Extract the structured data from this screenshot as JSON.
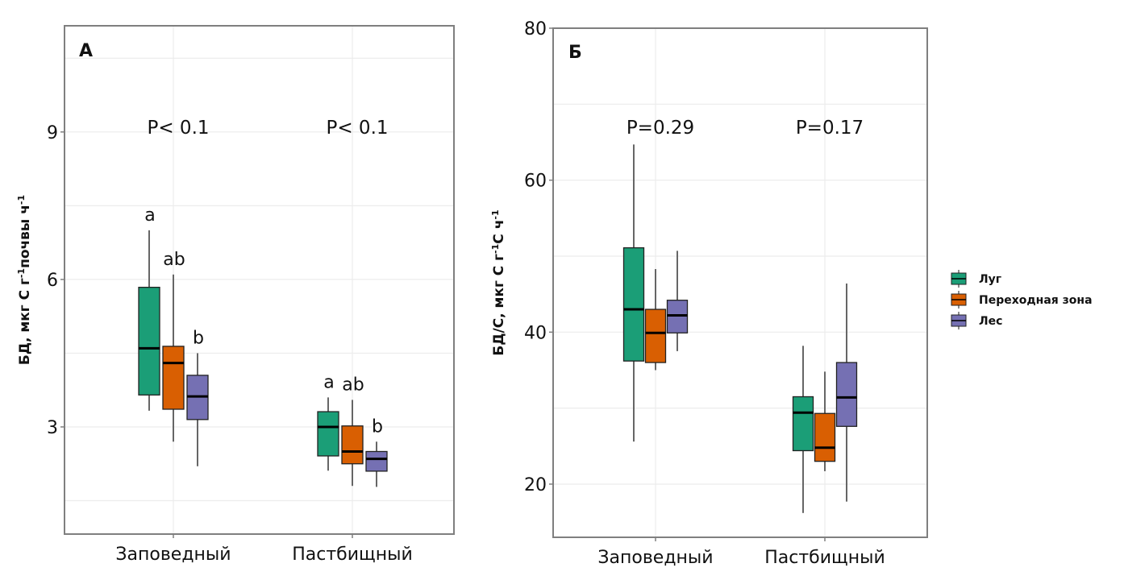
{
  "chart_data": [
    {
      "type": "box",
      "panel_label": "А",
      "title": "",
      "xlabel": "",
      "ylabel": "БД, мкг С г⁻¹почвы ч⁻¹",
      "ylabel_parts": [
        "БД, мкг С г",
        "-1",
        "почвы ч",
        "-1"
      ],
      "categories": [
        "Заповедный",
        "Пастбищный"
      ],
      "yticks": [
        3,
        6,
        9
      ],
      "ylim": [
        0.82,
        11.16
      ],
      "grid": true,
      "p_values": [
        "P< 0.1",
        "P< 0.1"
      ],
      "series": [
        {
          "name": "Луг",
          "boxes": [
            {
              "min": 3.33,
              "q1": 3.65,
              "median": 4.6,
              "q3": 5.84,
              "max": 7.0,
              "letter": "a"
            },
            {
              "min": 2.11,
              "q1": 2.41,
              "median": 3.0,
              "q3": 3.31,
              "max": 3.6,
              "letter": "a"
            }
          ]
        },
        {
          "name": "Переходная зона",
          "boxes": [
            {
              "min": 2.7,
              "q1": 3.36,
              "median": 4.3,
              "q3": 4.64,
              "max": 6.1,
              "letter": "ab"
            },
            {
              "min": 1.8,
              "q1": 2.25,
              "median": 2.5,
              "q3": 3.02,
              "max": 3.55,
              "letter": "ab"
            }
          ]
        },
        {
          "name": "Лес",
          "boxes": [
            {
              "min": 2.2,
              "q1": 3.15,
              "median": 3.62,
              "q3": 4.05,
              "max": 4.5,
              "letter": "b"
            },
            {
              "min": 1.78,
              "q1": 2.1,
              "median": 2.35,
              "q3": 2.5,
              "max": 2.7,
              "letter": "b"
            }
          ]
        }
      ]
    },
    {
      "type": "box",
      "panel_label": "Б",
      "title": "",
      "xlabel": "",
      "ylabel": "БД/С, мкг С г⁻¹С ч⁻¹",
      "ylabel_parts": [
        "БД/С, мкг С  г",
        "-1",
        "С  ч",
        "-1"
      ],
      "categories": [
        "Заповедный",
        "Пастбищный"
      ],
      "yticks": [
        20,
        40,
        60,
        80
      ],
      "ylim": [
        13.0,
        80.0
      ],
      "grid": true,
      "p_values": [
        "P=0.29",
        "P=0.17"
      ],
      "series": [
        {
          "name": "Луг",
          "boxes": [
            {
              "min": 25.6,
              "q1": 36.2,
              "median": 43.0,
              "q3": 51.1,
              "max": 64.7
            },
            {
              "min": 16.2,
              "q1": 24.4,
              "median": 29.4,
              "q3": 31.5,
              "max": 38.2
            }
          ]
        },
        {
          "name": "Переходная зона",
          "boxes": [
            {
              "min": 35.0,
              "q1": 36.0,
              "median": 39.9,
              "q3": 43.0,
              "max": 48.3
            },
            {
              "min": 21.7,
              "q1": 23.0,
              "median": 24.8,
              "q3": 29.3,
              "max": 34.8
            }
          ]
        },
        {
          "name": "Лес",
          "boxes": [
            {
              "min": 37.5,
              "q1": 39.9,
              "median": 42.2,
              "q3": 44.2,
              "max": 50.7
            },
            {
              "min": 17.7,
              "q1": 27.6,
              "median": 31.4,
              "q3": 36.0,
              "max": 46.4
            }
          ]
        }
      ]
    }
  ],
  "legend": {
    "placement": "right",
    "items": [
      {
        "label": "Луг",
        "color": "#1b9e77"
      },
      {
        "label": "Переходная зона",
        "color": "#d95f02"
      },
      {
        "label": "Лес",
        "color": "#7570b3"
      }
    ]
  },
  "colors": {
    "series": [
      "#1b9e77",
      "#d95f02",
      "#7570b3"
    ],
    "axis": "#7f7f7f",
    "grid": "#ececec",
    "whisker": "#666666"
  }
}
